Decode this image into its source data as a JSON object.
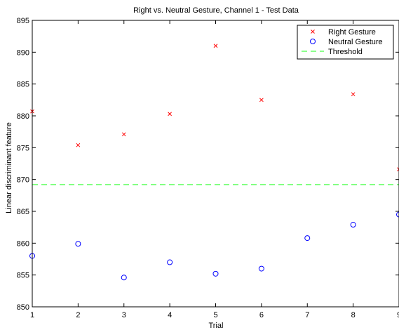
{
  "chart_data": {
    "type": "scatter",
    "title": "Right vs. Neutral Gesture, Channel 1 - Test Data",
    "xlabel": "Trial",
    "ylabel": "Linear discriminant feature",
    "xlim": [
      1,
      9
    ],
    "ylim": [
      850,
      895
    ],
    "x_ticks": [
      1,
      2,
      3,
      4,
      5,
      6,
      7,
      8,
      9
    ],
    "y_ticks": [
      850,
      855,
      860,
      865,
      870,
      875,
      880,
      885,
      890,
      895
    ],
    "grid": false,
    "legend_position": "top-right",
    "series": [
      {
        "name": "Right Gesture",
        "marker": "x",
        "color": "#ff0000",
        "x": [
          1,
          2,
          3,
          4,
          5,
          6,
          8,
          9
        ],
        "y": [
          880.7,
          875.4,
          877.1,
          880.3,
          891.0,
          882.5,
          883.4,
          871.6
        ]
      },
      {
        "name": "Neutral Gesture",
        "marker": "o",
        "color": "#0000ff",
        "x": [
          1,
          2,
          3,
          4,
          5,
          6,
          7,
          8,
          9
        ],
        "y": [
          858.0,
          859.9,
          854.6,
          857.0,
          855.2,
          856.0,
          860.8,
          862.9,
          864.5
        ]
      },
      {
        "name": "Threshold",
        "marker": "dashed-line",
        "color": "#66ff66",
        "y_constant": 869.2
      }
    ]
  }
}
